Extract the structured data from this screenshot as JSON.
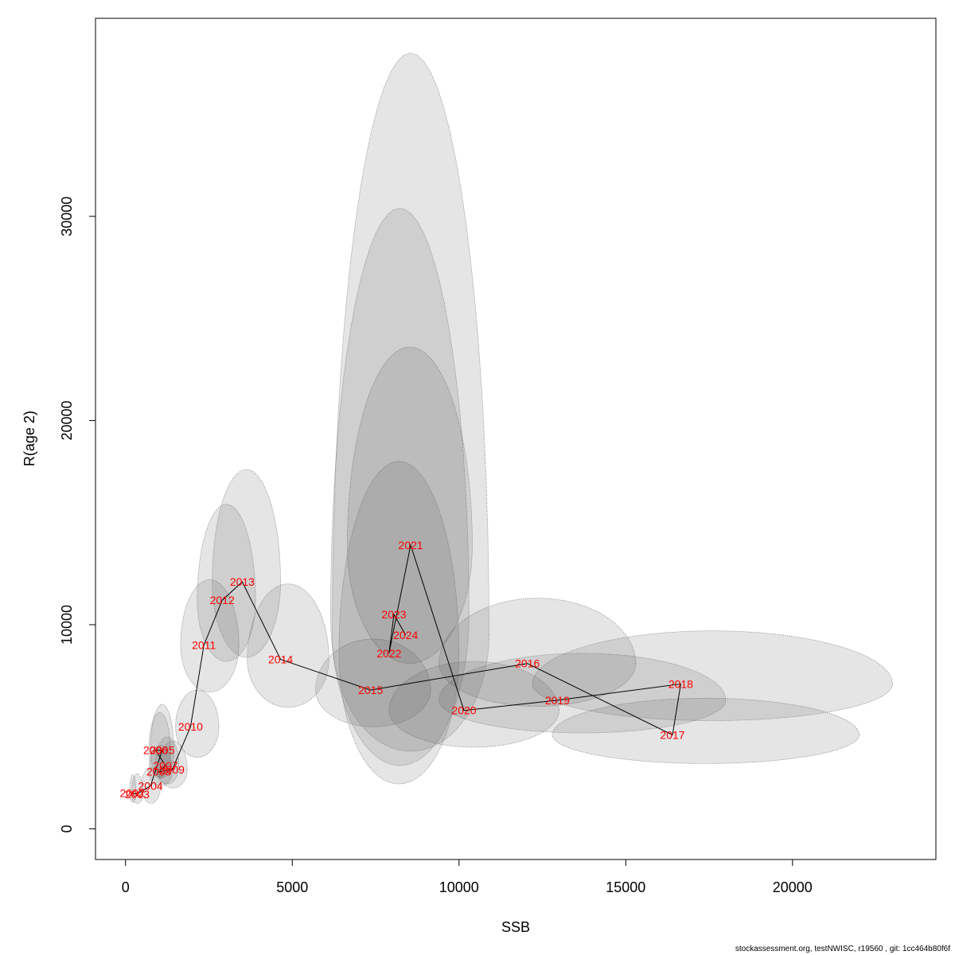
{
  "footer": "stockassessment.org, testNWISC, r19560 , git: 1cc464b80f6f",
  "chart_data": {
    "type": "scatter",
    "title": "",
    "xlabel": "SSB",
    "ylabel": "R(age 2)",
    "xlim": [
      -900,
      24300
    ],
    "ylim": [
      -1500,
      39700
    ],
    "xticks": [
      0,
      5000,
      10000,
      15000,
      20000
    ],
    "yticks": [
      0,
      10000,
      20000,
      30000
    ],
    "grid": false,
    "legend": "none",
    "colors": {
      "label": "#ff0000",
      "line": "#000000",
      "ellipse_fill": "rgba(80,80,80,0.15)",
      "ellipse_stroke": "#777777"
    },
    "points": [
      {
        "year": "2002",
        "ssb": 200,
        "r": 1750,
        "ssb_lo": 120,
        "ssb_hi": 310,
        "r_lo": 1300,
        "r_hi": 2650
      },
      {
        "year": "2003",
        "ssb": 350,
        "r": 1700,
        "ssb_lo": 180,
        "ssb_hi": 520,
        "r_lo": 1250,
        "r_hi": 2700
      },
      {
        "year": "2004",
        "ssb": 750,
        "r": 2100,
        "ssb_lo": 480,
        "ssb_hi": 1050,
        "r_lo": 1250,
        "r_hi": 3000
      },
      {
        "year": "2005",
        "ssb": 1100,
        "r": 3850,
        "ssb_lo": 750,
        "ssb_hi": 1450,
        "r_lo": 2500,
        "r_hi": 6100
      },
      {
        "year": "2006",
        "ssb": 900,
        "r": 3850,
        "ssb_lo": 700,
        "ssb_hi": 1350,
        "r_lo": 2500,
        "r_hi": 5700
      },
      {
        "year": "2007",
        "ssb": 1200,
        "r": 3100,
        "ssb_lo": 900,
        "ssb_hi": 1600,
        "r_lo": 2200,
        "r_hi": 4500
      },
      {
        "year": "2008",
        "ssb": 1000,
        "r": 2800,
        "ssb_lo": 700,
        "ssb_hi": 1400,
        "r_lo": 2100,
        "r_hi": 4100
      },
      {
        "year": "2009",
        "ssb": 1400,
        "r": 2900,
        "ssb_lo": 1000,
        "ssb_hi": 1850,
        "r_lo": 2000,
        "r_hi": 4300
      },
      {
        "year": "2010",
        "ssb": 1950,
        "r": 5000,
        "ssb_lo": 1500,
        "ssb_hi": 2800,
        "r_lo": 3500,
        "r_hi": 6800
      },
      {
        "year": "2011",
        "ssb": 2350,
        "r": 9000,
        "ssb_lo": 1650,
        "ssb_hi": 3400,
        "r_lo": 6700,
        "r_hi": 12200
      },
      {
        "year": "2012",
        "ssb": 2900,
        "r": 11200,
        "ssb_lo": 2150,
        "ssb_hi": 3900,
        "r_lo": 8200,
        "r_hi": 15900
      },
      {
        "year": "2013",
        "ssb": 3500,
        "r": 12100,
        "ssb_lo": 2600,
        "ssb_hi": 4650,
        "r_lo": 8400,
        "r_hi": 17600
      },
      {
        "year": "2014",
        "ssb": 4650,
        "r": 8300,
        "ssb_lo": 3650,
        "ssb_hi": 6100,
        "r_lo": 5950,
        "r_hi": 12000
      },
      {
        "year": "2015",
        "ssb": 7350,
        "r": 6800,
        "ssb_lo": 5700,
        "ssb_hi": 9150,
        "r_lo": 5000,
        "r_hi": 9300
      },
      {
        "year": "2016",
        "ssb": 12050,
        "r": 8100,
        "ssb_lo": 9400,
        "ssb_hi": 15300,
        "r_lo": 6000,
        "r_hi": 11300
      },
      {
        "year": "2017",
        "ssb": 16400,
        "r": 4600,
        "ssb_lo": 12800,
        "ssb_hi": 22000,
        "r_lo": 3200,
        "r_hi": 6400
      },
      {
        "year": "2018",
        "ssb": 16650,
        "r": 7100,
        "ssb_lo": 12200,
        "ssb_hi": 23000,
        "r_lo": 5300,
        "r_hi": 9700
      },
      {
        "year": "2019",
        "ssb": 12950,
        "r": 6300,
        "ssb_lo": 9400,
        "ssb_hi": 18000,
        "r_lo": 4700,
        "r_hi": 8600
      },
      {
        "year": "2020",
        "ssb": 10150,
        "r": 5800,
        "ssb_lo": 7900,
        "ssb_hi": 13000,
        "r_lo": 4000,
        "r_hi": 8200
      },
      {
        "year": "2021",
        "ssb": 8550,
        "r": 13900,
        "ssb_lo": 6650,
        "ssb_hi": 10400,
        "r_lo": 8100,
        "r_hi": 23600
      },
      {
        "year": "2022",
        "ssb": 7900,
        "r": 8600,
        "ssb_lo": 6400,
        "ssb_hi": 10000,
        "r_lo": 2200,
        "r_hi": 18000
      },
      {
        "year": "2023",
        "ssb": 8050,
        "r": 10500,
        "ssb_lo": 6150,
        "ssb_hi": 10300,
        "r_lo": 3100,
        "r_hi": 30400
      },
      {
        "year": "2024",
        "ssb": 8400,
        "r": 9500,
        "ssb_lo": 6200,
        "ssb_hi": 10900,
        "r_lo": 3800,
        "r_hi": 38000
      }
    ]
  }
}
